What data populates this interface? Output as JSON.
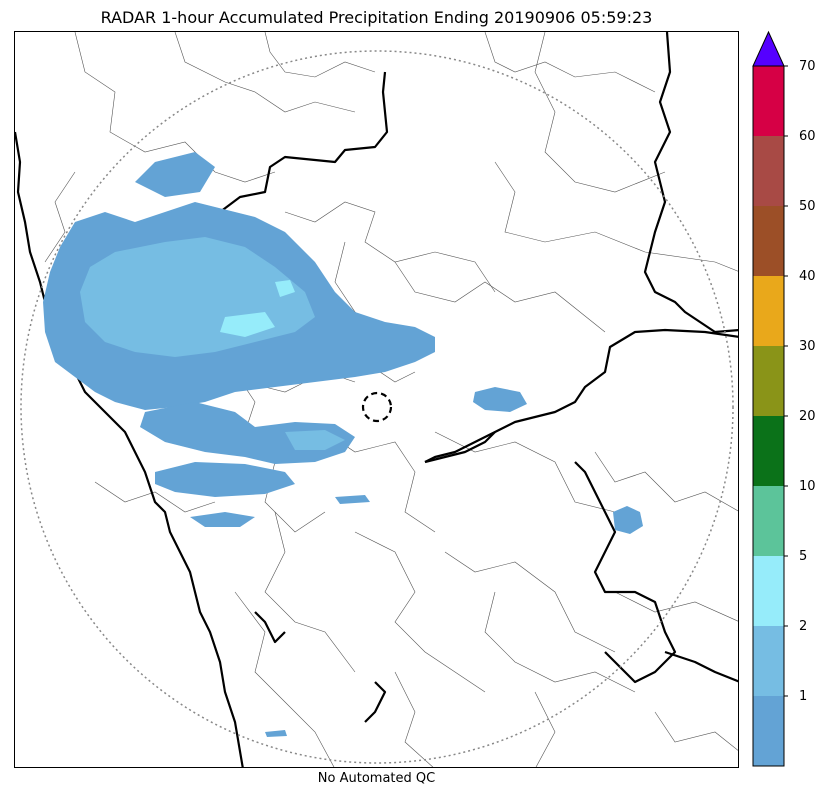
{
  "title": "RADAR 1-hour Accumulated Precipitation Ending 20190906 05:59:23",
  "footer": "No Automated QC",
  "colorbar": {
    "tick_labels": [
      "1",
      "2",
      "5",
      "10",
      "20",
      "30",
      "40",
      "50",
      "60",
      "70"
    ],
    "bins": [
      {
        "color": "#63a3d5"
      },
      {
        "color": "#76bde3"
      },
      {
        "color": "#96ecfa"
      },
      {
        "color": "#5cc49a"
      },
      {
        "color": "#0b7219"
      },
      {
        "color": "#8a9418"
      },
      {
        "color": "#e9a81b"
      },
      {
        "color": "#9c4f27"
      },
      {
        "color": "#a84a45"
      },
      {
        "color": "#d60045"
      }
    ],
    "extend_color": "#5500ff"
  },
  "map": {
    "range_ring_style": "dotted",
    "radar_site_marker": "dashed-circle",
    "boundaries": [
      "coastline",
      "state-borders",
      "district-borders"
    ]
  }
}
